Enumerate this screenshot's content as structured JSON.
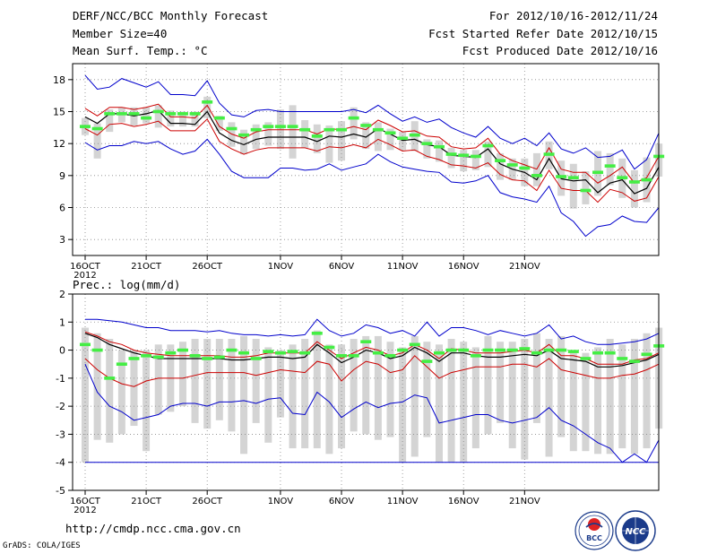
{
  "header": {
    "title": "DERF/NCC/BCC Monthly Forecast",
    "member": "Member Size=40",
    "variable": "Mean Surf. Temp.: °C",
    "period": "For 2012/10/16-2012/11/24",
    "started": "Fcst Started Refer Date 2012/10/15",
    "produced": "Fcst Produced Date 2012/10/16"
  },
  "footer": {
    "url": "http://cmdp.ncc.cma.gov.cn",
    "grads": "GrADS: COLA/IGES",
    "logo1_text": "BCC",
    "logo2_text": "NCC"
  },
  "colors": {
    "envelope": "#0000cc",
    "spread": "#cc0000",
    "mean": "#000000",
    "median": "#44ee44",
    "box": "#d4d4d4",
    "grid": "#888888"
  },
  "chart_data": [
    {
      "type": "line",
      "title": "Mean Surf. Temp.: °C",
      "x_start": "2012-10-16",
      "x_tick_labels": [
        "16OCT",
        "21OCT",
        "26OCT",
        "1NOV",
        "6NOV",
        "11NOV",
        "16NOV",
        "21NOV"
      ],
      "x_tick_days": [
        1,
        6,
        11,
        17,
        22,
        27,
        32,
        37
      ],
      "x_year_label": "2012",
      "y_ticks": [
        3,
        6,
        9,
        12,
        15,
        18
      ],
      "ylim": [
        1.5,
        19.5
      ],
      "grid": true,
      "series": [
        {
          "name": "max",
          "values": [
            18.4,
            17.1,
            17.3,
            18.1,
            17.7,
            17.3,
            17.8,
            16.6,
            16.6,
            16.5,
            17.9,
            15.8,
            14.7,
            14.5,
            15.1,
            15.2,
            15.0,
            15.0,
            15.0,
            15.0,
            15.0,
            15.0,
            15.2,
            14.9,
            15.6,
            14.8,
            14.1,
            14.5,
            14.0,
            14.3,
            13.5,
            13.0,
            12.6,
            13.6,
            12.5,
            12.0,
            12.5,
            11.8,
            13.0,
            11.5,
            11.1,
            11.6,
            10.7,
            10.8,
            11.4,
            9.6,
            10.5,
            13.0
          ]
        },
        {
          "name": "p75",
          "values": [
            15.3,
            14.6,
            15.4,
            15.4,
            15.2,
            15.4,
            15.7,
            14.5,
            14.5,
            14.4,
            15.6,
            13.6,
            12.9,
            12.5,
            13.1,
            13.3,
            13.3,
            13.3,
            13.3,
            12.9,
            13.4,
            13.3,
            13.6,
            13.3,
            14.2,
            13.7,
            13.1,
            13.2,
            12.7,
            12.6,
            11.7,
            11.5,
            11.6,
            12.5,
            11.0,
            10.4,
            10.0,
            9.6,
            11.6,
            9.6,
            9.3,
            9.3,
            8.3,
            9.0,
            9.8,
            8.3,
            8.8,
            10.8
          ]
        },
        {
          "name": "mean",
          "values": [
            14.5,
            13.9,
            14.8,
            14.8,
            14.6,
            14.8,
            15.1,
            13.9,
            13.9,
            13.8,
            15.0,
            13.0,
            12.3,
            11.9,
            12.4,
            12.6,
            12.6,
            12.6,
            12.6,
            12.2,
            12.7,
            12.6,
            12.9,
            12.6,
            13.4,
            12.9,
            12.3,
            12.4,
            11.9,
            11.7,
            10.9,
            10.8,
            10.7,
            11.5,
            10.1,
            9.6,
            9.3,
            8.6,
            10.6,
            8.7,
            8.5,
            8.6,
            7.4,
            8.3,
            8.6,
            7.3,
            7.8,
            9.8
          ]
        },
        {
          "name": "p25",
          "values": [
            13.4,
            12.8,
            13.8,
            13.9,
            13.6,
            13.8,
            14.1,
            13.2,
            13.2,
            13.2,
            14.3,
            12.2,
            11.5,
            11.0,
            11.4,
            11.6,
            11.6,
            11.6,
            11.6,
            11.3,
            11.7,
            11.6,
            11.9,
            11.6,
            12.4,
            11.9,
            11.3,
            11.4,
            10.8,
            10.5,
            10.0,
            9.9,
            9.7,
            10.2,
            9.1,
            8.6,
            8.5,
            7.6,
            9.5,
            7.8,
            7.6,
            7.6,
            6.5,
            7.7,
            7.4,
            6.6,
            6.9,
            8.9
          ]
        },
        {
          "name": "min",
          "values": [
            12.1,
            11.4,
            11.8,
            11.8,
            12.2,
            12.0,
            12.2,
            11.5,
            11.0,
            11.3,
            12.4,
            11.0,
            9.4,
            8.8,
            8.8,
            8.8,
            9.7,
            9.7,
            9.5,
            9.6,
            10.1,
            9.5,
            9.8,
            10.1,
            11.0,
            10.3,
            9.8,
            9.6,
            9.4,
            9.3,
            8.4,
            8.3,
            8.5,
            9.0,
            7.4,
            7.0,
            6.8,
            6.5,
            8.0,
            5.5,
            4.7,
            3.3,
            4.2,
            4.4,
            5.2,
            4.7,
            4.6,
            6.0
          ]
        },
        {
          "name": "median",
          "values": [
            13.6,
            13.4,
            14.8,
            14.8,
            14.8,
            14.4,
            15.0,
            14.8,
            14.8,
            14.8,
            15.9,
            14.4,
            13.4,
            12.8,
            13.3,
            13.6,
            13.6,
            13.6,
            13.3,
            12.7,
            13.3,
            13.3,
            14.4,
            13.7,
            13.3,
            13.0,
            12.5,
            12.8,
            12.0,
            11.7,
            11.0,
            10.9,
            10.8,
            11.8,
            10.4,
            10.0,
            9.7,
            9.0,
            11.0,
            8.9,
            8.8,
            7.6,
            9.3,
            9.9,
            8.8,
            8.4,
            8.6,
            10.8
          ]
        },
        {
          "name": "box_high",
          "values": [
            14.4,
            13.9,
            15.2,
            15.4,
            15.4,
            15.4,
            15.6,
            15.1,
            15.0,
            15.0,
            16.4,
            14.6,
            14.0,
            13.3,
            13.8,
            14.0,
            15.2,
            15.6,
            14.2,
            13.8,
            13.7,
            14.1,
            15.4,
            14.0,
            14.0,
            13.4,
            13.1,
            14.1,
            12.4,
            12.3,
            11.6,
            11.4,
            11.4,
            12.2,
            11.1,
            10.6,
            10.6,
            11.1,
            12.2,
            10.4,
            10.1,
            9.4,
            11.3,
            11.1,
            10.6,
            9.5,
            10.7,
            12.0
          ]
        },
        {
          "name": "box_low",
          "values": [
            12.8,
            10.6,
            13.1,
            14.0,
            13.7,
            13.9,
            13.5,
            13.6,
            13.6,
            13.6,
            14.4,
            13.2,
            11.7,
            11.0,
            11.5,
            11.8,
            11.5,
            10.6,
            11.6,
            11.1,
            10.2,
            10.4,
            12.4,
            11.5,
            11.3,
            11.4,
            11.4,
            11.3,
            10.6,
            10.3,
            9.7,
            9.4,
            9.5,
            9.8,
            8.6,
            8.6,
            8.0,
            8.0,
            9.6,
            7.1,
            5.9,
            6.3,
            7.1,
            8.1,
            6.9,
            6.0,
            6.5,
            8.9
          ]
        }
      ]
    },
    {
      "type": "line",
      "title": "Prec.: log(mm/d)",
      "x_start": "2012-10-16",
      "x_tick_labels": [
        "16OCT",
        "21OCT",
        "26OCT",
        "1NOV",
        "6NOV",
        "11NOV",
        "16NOV",
        "21NOV"
      ],
      "x_tick_days": [
        1,
        6,
        11,
        17,
        22,
        27,
        32,
        37
      ],
      "x_year_label": "2012",
      "y_ticks": [
        -5,
        -4,
        -3,
        -2,
        -1,
        0,
        1,
        2
      ],
      "ylim": [
        -5,
        2
      ],
      "grid": true,
      "series": [
        {
          "name": "max",
          "values": [
            1.1,
            1.1,
            1.05,
            1.0,
            0.9,
            0.8,
            0.8,
            0.7,
            0.7,
            0.7,
            0.65,
            0.7,
            0.6,
            0.55,
            0.55,
            0.5,
            0.55,
            0.5,
            0.55,
            1.1,
            0.7,
            0.5,
            0.6,
            0.9,
            0.8,
            0.6,
            0.7,
            0.5,
            1.0,
            0.5,
            0.8,
            0.8,
            0.7,
            0.55,
            0.7,
            0.6,
            0.5,
            0.6,
            0.9,
            0.4,
            0.5,
            0.3,
            0.2,
            0.2,
            0.25,
            0.3,
            0.4,
            0.6
          ]
        },
        {
          "name": "p75",
          "values": [
            0.65,
            0.5,
            0.3,
            0.2,
            0.0,
            -0.1,
            -0.15,
            -0.2,
            -0.2,
            -0.2,
            -0.2,
            -0.2,
            -0.25,
            -0.25,
            -0.2,
            -0.1,
            -0.1,
            -0.1,
            -0.1,
            0.3,
            0.0,
            -0.3,
            -0.1,
            0.1,
            0.0,
            -0.2,
            -0.1,
            0.2,
            0.0,
            -0.3,
            0.05,
            0.0,
            -0.1,
            -0.1,
            -0.1,
            -0.05,
            0.0,
            -0.1,
            0.2,
            -0.2,
            -0.2,
            -0.3,
            -0.5,
            -0.5,
            -0.5,
            -0.35,
            -0.3,
            -0.1
          ]
        },
        {
          "name": "mean",
          "values": [
            0.6,
            0.45,
            0.2,
            0.05,
            -0.1,
            -0.2,
            -0.3,
            -0.3,
            -0.3,
            -0.3,
            -0.3,
            -0.3,
            -0.35,
            -0.35,
            -0.3,
            -0.25,
            -0.25,
            -0.3,
            -0.25,
            0.2,
            -0.1,
            -0.45,
            -0.25,
            0.0,
            -0.1,
            -0.3,
            -0.2,
            0.1,
            -0.1,
            -0.4,
            -0.1,
            -0.1,
            -0.2,
            -0.25,
            -0.25,
            -0.2,
            -0.15,
            -0.2,
            0.0,
            -0.3,
            -0.35,
            -0.4,
            -0.6,
            -0.6,
            -0.55,
            -0.45,
            -0.35,
            -0.15
          ]
        },
        {
          "name": "p25",
          "values": [
            -0.3,
            -0.7,
            -1.0,
            -1.2,
            -1.3,
            -1.1,
            -1.0,
            -1.0,
            -1.0,
            -0.9,
            -0.8,
            -0.8,
            -0.8,
            -0.8,
            -0.9,
            -0.8,
            -0.7,
            -0.75,
            -0.8,
            -0.4,
            -0.5,
            -1.1,
            -0.7,
            -0.4,
            -0.5,
            -0.8,
            -0.7,
            -0.2,
            -0.6,
            -1.0,
            -0.8,
            -0.7,
            -0.6,
            -0.6,
            -0.6,
            -0.5,
            -0.5,
            -0.6,
            -0.3,
            -0.7,
            -0.8,
            -0.9,
            -1.0,
            -1.0,
            -0.9,
            -0.85,
            -0.7,
            -0.5
          ]
        },
        {
          "name": "min",
          "values": [
            -0.5,
            -1.5,
            -2.0,
            -2.2,
            -2.5,
            -2.4,
            -2.3,
            -2.0,
            -1.9,
            -1.9,
            -2.0,
            -1.85,
            -1.85,
            -1.8,
            -1.9,
            -1.75,
            -1.7,
            -2.25,
            -2.3,
            -1.5,
            -1.85,
            -2.4,
            -2.1,
            -1.85,
            -2.05,
            -1.9,
            -1.85,
            -1.6,
            -1.7,
            -2.6,
            -2.5,
            -2.4,
            -2.3,
            -2.3,
            -2.5,
            -2.6,
            -2.5,
            -2.4,
            -2.05,
            -2.5,
            -2.7,
            -3.0,
            -3.3,
            -3.5,
            -4.0,
            -3.7,
            -4.0,
            -3.2
          ]
        },
        {
          "name": "median",
          "values": [
            0.2,
            0.0,
            -1.0,
            -0.5,
            -0.3,
            -0.2,
            -0.25,
            -0.1,
            0.0,
            -0.2,
            -0.3,
            -0.25,
            0.0,
            -0.1,
            -0.3,
            -0.05,
            -0.1,
            -0.05,
            -0.1,
            0.6,
            0.1,
            -0.2,
            -0.2,
            0.3,
            -0.1,
            -0.2,
            0.0,
            0.2,
            -0.4,
            -0.1,
            0.0,
            0.0,
            -0.2,
            0.0,
            0.0,
            0.0,
            0.05,
            -0.1,
            0.0,
            0.0,
            -0.05,
            -0.3,
            -0.1,
            -0.1,
            -0.3,
            -0.4,
            -0.15,
            0.15
          ]
        },
        {
          "name": "box_high",
          "values": [
            0.8,
            0.6,
            0.4,
            0.0,
            0.0,
            0.0,
            0.2,
            0.2,
            0.3,
            0.4,
            0.4,
            0.4,
            0.4,
            0.5,
            0.4,
            0.1,
            0.0,
            0.2,
            0.4,
            0.7,
            0.2,
            0.2,
            0.4,
            0.5,
            0.5,
            0.3,
            0.1,
            0.5,
            0.3,
            0.2,
            0.4,
            0.3,
            0.1,
            0.5,
            0.3,
            0.3,
            0.4,
            0.6,
            0.4,
            0.5,
            0.0,
            -0.1,
            0.1,
            0.4,
            0.2,
            0.4,
            0.6,
            0.8
          ]
        },
        {
          "name": "box_low",
          "values": [
            -4.0,
            -3.2,
            -3.3,
            -3.0,
            -2.7,
            -3.6,
            -2.3,
            -2.2,
            -2.0,
            -2.6,
            -2.8,
            -2.5,
            -2.9,
            -3.7,
            -2.6,
            -3.3,
            -2.4,
            -3.5,
            -3.5,
            -3.5,
            -3.7,
            -3.5,
            -2.9,
            -3.0,
            -3.2,
            -3.1,
            -4.0,
            -3.8,
            -3.1,
            -4.0,
            -4.0,
            -4.0,
            -3.5,
            -3.0,
            -2.6,
            -3.5,
            -3.9,
            -2.6,
            -3.8,
            -3.1,
            -3.6,
            -3.6,
            -3.7,
            -3.7,
            -3.5,
            -3.7,
            -3.5,
            -2.8
          ]
        }
      ]
    }
  ]
}
